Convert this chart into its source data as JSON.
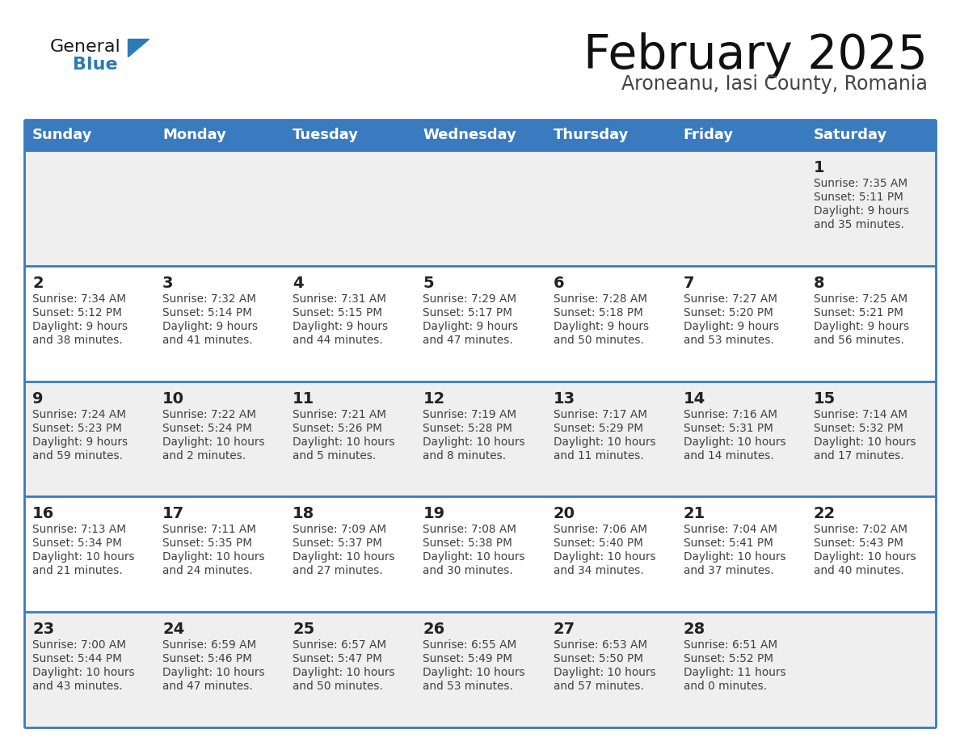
{
  "title": "February 2025",
  "subtitle": "Aroneanu, Iasi County, Romania",
  "header_color": "#3a7abf",
  "header_text_color": "#ffffff",
  "day_names": [
    "Sunday",
    "Monday",
    "Tuesday",
    "Wednesday",
    "Thursday",
    "Friday",
    "Saturday"
  ],
  "background_color": "#ffffff",
  "cell_bg_light": "#efefef",
  "cell_bg_white": "#ffffff",
  "row_colors": [
    "#efefef",
    "#ffffff",
    "#efefef",
    "#ffffff",
    "#efefef"
  ],
  "grid_color": "#3a7abf",
  "text_color": "#404040",
  "day_num_color": "#222222",
  "title_color": "#111111",
  "subtitle_color": "#444444",
  "logo_general_color": "#1a1a1a",
  "logo_blue_color": "#2b7bb9",
  "calendar_data": [
    [
      null,
      null,
      null,
      null,
      null,
      null,
      {
        "day": 1,
        "sunrise": "7:35 AM",
        "sunset": "5:11 PM",
        "daylight": "9 hours\nand 35 minutes."
      }
    ],
    [
      {
        "day": 2,
        "sunrise": "7:34 AM",
        "sunset": "5:12 PM",
        "daylight": "9 hours\nand 38 minutes."
      },
      {
        "day": 3,
        "sunrise": "7:32 AM",
        "sunset": "5:14 PM",
        "daylight": "9 hours\nand 41 minutes."
      },
      {
        "day": 4,
        "sunrise": "7:31 AM",
        "sunset": "5:15 PM",
        "daylight": "9 hours\nand 44 minutes."
      },
      {
        "day": 5,
        "sunrise": "7:29 AM",
        "sunset": "5:17 PM",
        "daylight": "9 hours\nand 47 minutes."
      },
      {
        "day": 6,
        "sunrise": "7:28 AM",
        "sunset": "5:18 PM",
        "daylight": "9 hours\nand 50 minutes."
      },
      {
        "day": 7,
        "sunrise": "7:27 AM",
        "sunset": "5:20 PM",
        "daylight": "9 hours\nand 53 minutes."
      },
      {
        "day": 8,
        "sunrise": "7:25 AM",
        "sunset": "5:21 PM",
        "daylight": "9 hours\nand 56 minutes."
      }
    ],
    [
      {
        "day": 9,
        "sunrise": "7:24 AM",
        "sunset": "5:23 PM",
        "daylight": "9 hours\nand 59 minutes."
      },
      {
        "day": 10,
        "sunrise": "7:22 AM",
        "sunset": "5:24 PM",
        "daylight": "10 hours\nand 2 minutes."
      },
      {
        "day": 11,
        "sunrise": "7:21 AM",
        "sunset": "5:26 PM",
        "daylight": "10 hours\nand 5 minutes."
      },
      {
        "day": 12,
        "sunrise": "7:19 AM",
        "sunset": "5:28 PM",
        "daylight": "10 hours\nand 8 minutes."
      },
      {
        "day": 13,
        "sunrise": "7:17 AM",
        "sunset": "5:29 PM",
        "daylight": "10 hours\nand 11 minutes."
      },
      {
        "day": 14,
        "sunrise": "7:16 AM",
        "sunset": "5:31 PM",
        "daylight": "10 hours\nand 14 minutes."
      },
      {
        "day": 15,
        "sunrise": "7:14 AM",
        "sunset": "5:32 PM",
        "daylight": "10 hours\nand 17 minutes."
      }
    ],
    [
      {
        "day": 16,
        "sunrise": "7:13 AM",
        "sunset": "5:34 PM",
        "daylight": "10 hours\nand 21 minutes."
      },
      {
        "day": 17,
        "sunrise": "7:11 AM",
        "sunset": "5:35 PM",
        "daylight": "10 hours\nand 24 minutes."
      },
      {
        "day": 18,
        "sunrise": "7:09 AM",
        "sunset": "5:37 PM",
        "daylight": "10 hours\nand 27 minutes."
      },
      {
        "day": 19,
        "sunrise": "7:08 AM",
        "sunset": "5:38 PM",
        "daylight": "10 hours\nand 30 minutes."
      },
      {
        "day": 20,
        "sunrise": "7:06 AM",
        "sunset": "5:40 PM",
        "daylight": "10 hours\nand 34 minutes."
      },
      {
        "day": 21,
        "sunrise": "7:04 AM",
        "sunset": "5:41 PM",
        "daylight": "10 hours\nand 37 minutes."
      },
      {
        "day": 22,
        "sunrise": "7:02 AM",
        "sunset": "5:43 PM",
        "daylight": "10 hours\nand 40 minutes."
      }
    ],
    [
      {
        "day": 23,
        "sunrise": "7:00 AM",
        "sunset": "5:44 PM",
        "daylight": "10 hours\nand 43 minutes."
      },
      {
        "day": 24,
        "sunrise": "6:59 AM",
        "sunset": "5:46 PM",
        "daylight": "10 hours\nand 47 minutes."
      },
      {
        "day": 25,
        "sunrise": "6:57 AM",
        "sunset": "5:47 PM",
        "daylight": "10 hours\nand 50 minutes."
      },
      {
        "day": 26,
        "sunrise": "6:55 AM",
        "sunset": "5:49 PM",
        "daylight": "10 hours\nand 53 minutes."
      },
      {
        "day": 27,
        "sunrise": "6:53 AM",
        "sunset": "5:50 PM",
        "daylight": "10 hours\nand 57 minutes."
      },
      {
        "day": 28,
        "sunrise": "6:51 AM",
        "sunset": "5:52 PM",
        "daylight": "11 hours\nand 0 minutes."
      },
      null
    ]
  ],
  "figsize": [
    11.88,
    9.18
  ],
  "dpi": 100
}
